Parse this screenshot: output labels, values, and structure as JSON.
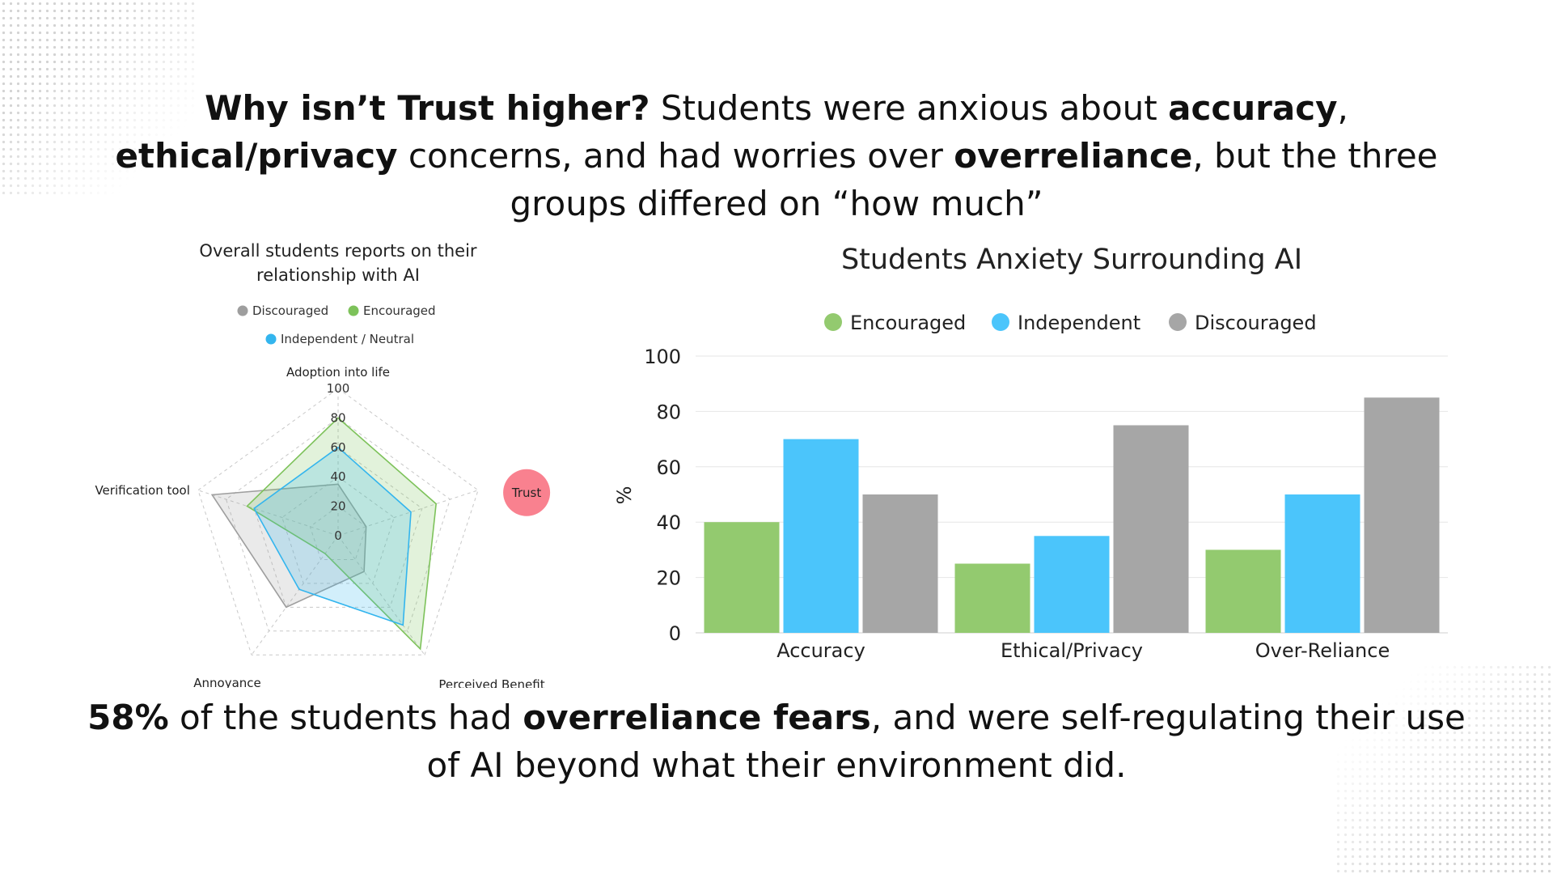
{
  "headline": {
    "q": "Why isn’t Trust higher?",
    "t1": " Students were anxious about ",
    "b1": "accuracy",
    "t2": ", ",
    "b2": "ethical/privacy",
    "t3": " concerns, and had worries over ",
    "b3": "overreliance",
    "t4": ", but the three groups differed on “how much”"
  },
  "footer": {
    "b1": "58%",
    "t1": " of the students had ",
    "b2": "overreliance fears",
    "t2": ", and were self-regulating their use of AI beyond what their environment did."
  },
  "chart_data": [
    {
      "type": "radar",
      "title": "Overall students reports on their relationship with AI",
      "axes": [
        "Adoption into life",
        "Trust",
        "Perceived Benefit",
        "Annoyance",
        "Verification tool"
      ],
      "rlim": [
        0,
        100
      ],
      "ticks": [
        0,
        20,
        40,
        60,
        80,
        100
      ],
      "series": [
        {
          "name": "Discouraged",
          "color": "#9e9e9e",
          "values": [
            35,
            20,
            30,
            60,
            90
          ]
        },
        {
          "name": "Encouraged",
          "color": "#7dc25a",
          "values": [
            80,
            70,
            95,
            15,
            65
          ]
        },
        {
          "name": "Independent / Neutral",
          "color": "#33b5ee",
          "values": [
            60,
            52,
            75,
            45,
            60
          ]
        }
      ],
      "legend": [
        "Discouraged",
        "Encouraged",
        "Independent / Neutral"
      ],
      "highlight": {
        "axis": "Trust",
        "label": "Trust",
        "color": "#f9818f"
      }
    },
    {
      "type": "bar",
      "title": "Students Anxiety Surrounding AI",
      "categories": [
        "Accuracy",
        "Ethical/Privacy",
        "Over-Reliance"
      ],
      "series": [
        {
          "name": "Encouraged",
          "color": "#93ca6f",
          "values": [
            40,
            25,
            30
          ]
        },
        {
          "name": "Independent",
          "color": "#4bc5fb",
          "values": [
            70,
            35,
            50
          ]
        },
        {
          "name": "Discouraged",
          "color": "#a6a6a6",
          "values": [
            50,
            75,
            85
          ]
        }
      ],
      "xlabel": "",
      "ylabel": "%",
      "ylim": [
        0,
        100
      ],
      "yticks": [
        0,
        20,
        40,
        60,
        80,
        100
      ]
    }
  ]
}
